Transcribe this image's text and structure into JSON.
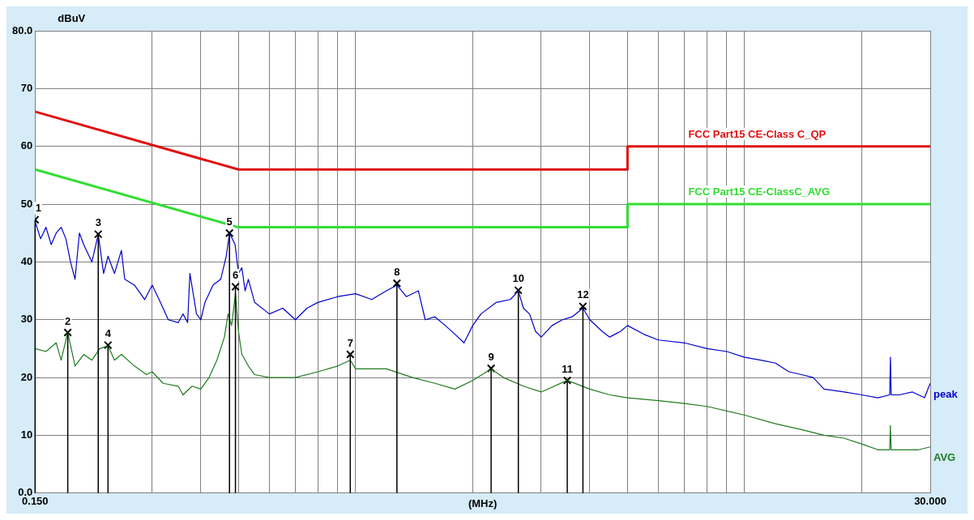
{
  "chart_data": {
    "type": "line",
    "xlabel": "(MHz)",
    "ylabel": "dBuV",
    "log": "x",
    "grid": true,
    "legend": false,
    "xlim": [
      0.15,
      30
    ],
    "ylim": [
      0,
      80
    ],
    "xticks": [
      {
        "value": 0.15,
        "label": "0.150"
      },
      {
        "value": 0.3,
        "label": null
      },
      {
        "value": 0.4,
        "label": null
      },
      {
        "value": 0.5,
        "label": null
      },
      {
        "value": 0.6,
        "label": null
      },
      {
        "value": 0.7,
        "label": null
      },
      {
        "value": 0.8,
        "label": null
      },
      {
        "value": 0.9,
        "label": null
      },
      {
        "value": 1,
        "label": null
      },
      {
        "value": 2,
        "label": null
      },
      {
        "value": 3,
        "label": null
      },
      {
        "value": 4,
        "label": null
      },
      {
        "value": 5,
        "label": null
      },
      {
        "value": 6,
        "label": null
      },
      {
        "value": 7,
        "label": null
      },
      {
        "value": 8,
        "label": null
      },
      {
        "value": 9,
        "label": null
      },
      {
        "value": 10,
        "label": null
      },
      {
        "value": 20,
        "label": null
      },
      {
        "value": 30,
        "label": "30.000"
      }
    ],
    "yticks": [
      {
        "value": 0,
        "label": "0.0"
      },
      10,
      20,
      30,
      40,
      50,
      60,
      70,
      {
        "value": 80,
        "label": "80.0"
      }
    ],
    "series": [
      {
        "name": "FCC Part15 CE-Class C_QP",
        "color": "#e01010",
        "x": [
          0.15,
          0.5,
          5,
          5,
          30
        ],
        "values": [
          66,
          56,
          56,
          60,
          60
        ]
      },
      {
        "name": "FCC Part15 CE-ClassC_AVG",
        "color": "#33dd33",
        "x": [
          0.15,
          0.5,
          5,
          5,
          30
        ],
        "values": [
          56,
          46,
          46,
          50,
          50
        ]
      },
      {
        "name": "peak",
        "color": "#0000cc",
        "x": [
          0.15,
          0.155,
          0.16,
          0.165,
          0.17,
          0.175,
          0.18,
          0.185,
          0.19,
          0.195,
          0.2,
          0.21,
          0.218,
          0.225,
          0.231,
          0.24,
          0.25,
          0.255,
          0.27,
          0.287,
          0.3,
          0.31,
          0.32,
          0.33,
          0.35,
          0.36,
          0.37,
          0.375,
          0.39,
          0.4,
          0.41,
          0.43,
          0.45,
          0.465,
          0.474,
          0.49,
          0.5,
          0.51,
          0.52,
          0.53,
          0.55,
          0.6,
          0.65,
          0.7,
          0.75,
          0.8,
          0.9,
          1,
          1.1,
          1.2,
          1.277,
          1.35,
          1.45,
          1.51,
          1.6,
          1.7,
          1.8,
          1.9,
          2,
          2.1,
          2.3,
          2.5,
          2.62,
          2.7,
          2.8,
          2.9,
          3,
          3.2,
          3.4,
          3.6,
          3.84,
          4,
          4.3,
          4.5,
          4.8,
          5,
          5.5,
          6,
          7,
          8,
          9,
          10,
          11,
          12,
          13,
          14,
          15,
          16,
          18,
          20,
          22,
          23.6,
          23.7,
          23.8,
          25,
          27,
          29,
          30
        ],
        "values": [
          47,
          44,
          46,
          43,
          45,
          46,
          44,
          40,
          37,
          45,
          43,
          40,
          44.8,
          38,
          41,
          38,
          42,
          37,
          36,
          33.5,
          36,
          34,
          32,
          30,
          29.5,
          31,
          29.5,
          38,
          31,
          30,
          33,
          36,
          37,
          41,
          45,
          43,
          38,
          39,
          35,
          37,
          33,
          31,
          32,
          30,
          32,
          33,
          34,
          34.5,
          33.5,
          35,
          36,
          34,
          35,
          30,
          30.5,
          29,
          27.5,
          26,
          29,
          31,
          33,
          33.5,
          35,
          32,
          31,
          28,
          27,
          29,
          30,
          30.5,
          32,
          30,
          28,
          27,
          28,
          29,
          27.5,
          26.5,
          26,
          25,
          24.5,
          23.5,
          23,
          22.5,
          21,
          20.5,
          20,
          18,
          17.5,
          17,
          16.5,
          17,
          23.5,
          17,
          17,
          17.5,
          16.5,
          19
        ]
      },
      {
        "name": "AVG",
        "color": "#1e7b1e",
        "x": [
          0.15,
          0.16,
          0.17,
          0.175,
          0.182,
          0.19,
          0.2,
          0.21,
          0.22,
          0.231,
          0.24,
          0.25,
          0.27,
          0.29,
          0.3,
          0.32,
          0.35,
          0.36,
          0.38,
          0.4,
          0.42,
          0.44,
          0.46,
          0.47,
          0.48,
          0.491,
          0.5,
          0.51,
          0.53,
          0.55,
          0.6,
          0.7,
          0.8,
          0.9,
          0.969,
          1,
          1.2,
          1.4,
          1.6,
          1.8,
          2,
          2.23,
          2.4,
          2.7,
          3,
          3.5,
          4,
          4.5,
          5,
          6,
          7,
          8,
          10,
          12,
          14,
          16,
          18,
          20,
          22,
          23.6,
          23.7,
          23.8,
          25,
          28,
          30
        ],
        "values": [
          25,
          24.5,
          26,
          23,
          27.8,
          22,
          24,
          23,
          25,
          25.5,
          23,
          24,
          22,
          20.5,
          21,
          19,
          18.5,
          17,
          18.5,
          18,
          20,
          23,
          27,
          31,
          29,
          34.5,
          28,
          24,
          22,
          20.5,
          20,
          20,
          21,
          22,
          23,
          21.5,
          21.5,
          20,
          19,
          18,
          19.5,
          21.5,
          20,
          18.5,
          17.5,
          19.5,
          18,
          17,
          16.5,
          16,
          15.5,
          15,
          13.5,
          12,
          11,
          10,
          9.5,
          8.5,
          7.5,
          7.5,
          11.7,
          7.5,
          7.5,
          7.5,
          8
        ]
      },
      {
        "type": "lollipop",
        "color": "#000000",
        "marker": "cross",
        "x": [
          0.15,
          0.182,
          0.218,
          0.231,
          0.474,
          0.491,
          0.969,
          1.277,
          2.23,
          2.62,
          3.5,
          3.84
        ],
        "values": [
          47.3,
          27.8,
          44.8,
          25.6,
          45,
          35.7,
          24,
          36.3,
          21.6,
          35.1,
          19.5,
          32.3
        ]
      }
    ],
    "annotations": [
      {
        "text": "1",
        "x": 0.15,
        "y": 47.3
      },
      {
        "text": "2",
        "x": 0.182,
        "y": 27.8
      },
      {
        "text": "3",
        "x": 0.218,
        "y": 44.8
      },
      {
        "text": "4",
        "x": 0.231,
        "y": 25.6
      },
      {
        "text": "5",
        "x": 0.474,
        "y": 45
      },
      {
        "text": "6",
        "x": 0.491,
        "y": 35.7
      },
      {
        "text": "7",
        "x": 0.969,
        "y": 24
      },
      {
        "text": "8",
        "x": 1.277,
        "y": 36.3
      },
      {
        "text": "9",
        "x": 2.23,
        "y": 21.6
      },
      {
        "text": "10",
        "x": 2.62,
        "y": 35.1
      },
      {
        "text": "11",
        "x": 3.5,
        "y": 19.5
      },
      {
        "text": "12",
        "x": 3.84,
        "y": 32.3
      }
    ]
  }
}
